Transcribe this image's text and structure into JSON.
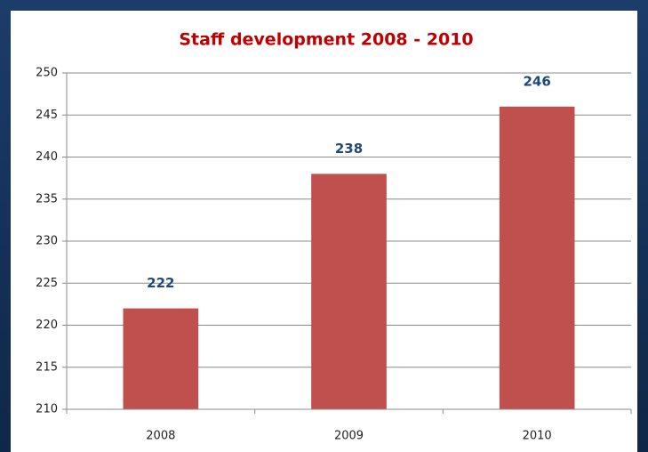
{
  "chart_data": {
    "type": "bar",
    "title": "Staff development 2008 - 2010",
    "categories": [
      "2008",
      "2009",
      "2010"
    ],
    "values": [
      222,
      238,
      246
    ],
    "color": "#c0504d",
    "ylim": [
      210,
      250
    ],
    "yticks": [
      210,
      215,
      220,
      225,
      230,
      235,
      240,
      245,
      250
    ],
    "grid": true
  }
}
